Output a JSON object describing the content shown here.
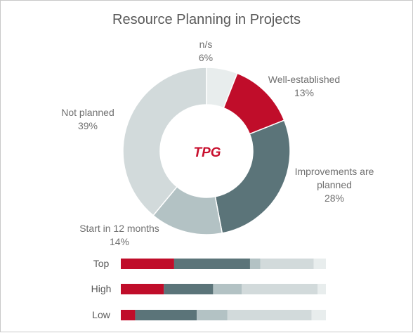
{
  "chart_data": [
    {
      "type": "pie",
      "title": "Resource Planning in Projects",
      "categories": [
        "n/s",
        "Well-established",
        "Improvements are planned",
        "Start in 12 months",
        "Not planned"
      ],
      "values": [
        6,
        13,
        28,
        14,
        39
      ],
      "labels": [
        {
          "lines": [
            "n/s",
            "6%"
          ]
        },
        {
          "lines": [
            "Well-established",
            "13%"
          ]
        },
        {
          "lines": [
            "Improvements are",
            "planned",
            "28%"
          ]
        },
        {
          "lines": [
            "Start in 12 months",
            "14%"
          ]
        },
        {
          "lines": [
            "Not planned",
            "39%"
          ]
        }
      ],
      "colors": [
        "#e8eded",
        "#c00d2a",
        "#5b7479",
        "#b3c2c4",
        "#d2dadb"
      ],
      "center_logo": "TPG"
    },
    {
      "type": "bar",
      "orientation": "horizontal",
      "stacked": "100%",
      "categories": [
        "Top",
        "High",
        "Low"
      ],
      "series": [
        {
          "values": [
            26,
            21,
            7
          ]
        },
        {
          "values": [
            37,
            24,
            30
          ]
        },
        {
          "values": [
            5,
            14,
            15
          ]
        },
        {
          "values": [
            26,
            37,
            41
          ]
        },
        {
          "values": [
            6,
            4,
            7
          ]
        }
      ],
      "colors": [
        "#c00d2a",
        "#5b7479",
        "#b3c2c4",
        "#d2dadb",
        "#e8eded"
      ]
    }
  ]
}
